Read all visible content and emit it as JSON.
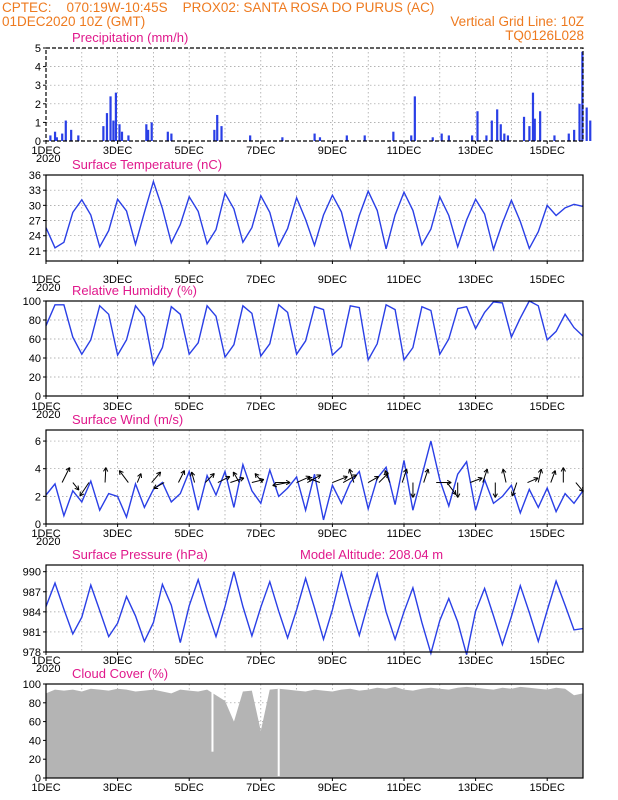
{
  "header": {
    "line1_left": "CPTEC:    070:19W-10:45S    PROX02: SANTA ROSA DO PURUS (AC)",
    "line2_left": "01DEC2020 10Z (GMT)",
    "line2_right": "Vertical Grid Line: 10Z",
    "line3_right": "TQ0126L028"
  },
  "colors": {
    "header": "#ee7a1f",
    "title": "#e0198c",
    "series": "#2a3fe6",
    "cloud": "#b4b4b4",
    "grid": "#9a9a9a"
  },
  "x_axis": {
    "start": "01DEC2020 10Z",
    "end": "16DEC2020 10Z",
    "tick_labels": [
      "1DEC",
      "3DEC",
      "5DEC",
      "7DEC",
      "9DEC",
      "11DEC",
      "13DEC",
      "15DEC"
    ],
    "first_tick_sublabel": "2020"
  },
  "chart_data": [
    {
      "type": "bar",
      "title": "Precipitation (mm/h)",
      "ylim": [
        0,
        5
      ],
      "yticks": [
        0,
        1,
        2,
        3,
        4,
        5
      ],
      "grid": true,
      "x_days": [
        0.12,
        0.25,
        0.3,
        0.45,
        0.55,
        0.7,
        0.9,
        1.6,
        1.7,
        1.8,
        1.88,
        1.95,
        2.05,
        2.12,
        2.3,
        2.8,
        2.85,
        2.95,
        3.4,
        3.5,
        4.7,
        4.78,
        4.9,
        5.7,
        6.6,
        7.5,
        7.65,
        8.4,
        8.9,
        9.7,
        10.2,
        10.3,
        10.8,
        11.05,
        11.25,
        11.9,
        12.05,
        12.3,
        12.45,
        12.6,
        12.7,
        12.8,
        12.9,
        13.35,
        13.5,
        13.6,
        13.65,
        13.8,
        14.2,
        14.6,
        14.75,
        14.9,
        14.98,
        15.1,
        15.2
      ],
      "values": [
        0.3,
        0.5,
        0.2,
        0.4,
        1.1,
        0.6,
        0.3,
        0.8,
        1.5,
        2.4,
        1.1,
        2.6,
        0.9,
        0.5,
        0.3,
        0.9,
        0.6,
        1.0,
        0.5,
        0.4,
        0.6,
        1.4,
        0.8,
        0.3,
        0.2,
        0.4,
        0.2,
        0.3,
        0.3,
        0.5,
        0.3,
        2.4,
        0.2,
        0.4,
        0.3,
        0.3,
        1.6,
        0.3,
        1.1,
        1.7,
        0.9,
        0.4,
        0.3,
        1.3,
        0.8,
        2.6,
        1.2,
        1.6,
        0.3,
        0.4,
        0.6,
        2.0,
        4.8,
        1.8,
        1.1
      ],
      "x_start": "01DEC2020 10Z",
      "x_span_days": 15
    },
    {
      "type": "line",
      "title": "Surface Temperature (nC)",
      "ylim": [
        19,
        36
      ],
      "yticks": [
        21,
        24,
        27,
        30,
        33,
        36
      ],
      "grid": true,
      "values": [
        25.6,
        21.6,
        22.7,
        28.6,
        31.1,
        28.1,
        21.8,
        25.0,
        31.2,
        28.9,
        22.3,
        28.6,
        34.7,
        29.4,
        22.6,
        26.2,
        31.7,
        28.8,
        22.4,
        25.2,
        32.4,
        29.3,
        22.7,
        25.6,
        31.9,
        28.6,
        22.0,
        25.4,
        31.5,
        27.2,
        22.1,
        28.1,
        32.0,
        28.7,
        21.6,
        28.0,
        32.8,
        29.0,
        21.4,
        28.1,
        32.6,
        29.0,
        22.2,
        25.3,
        31.7,
        28.0,
        21.8,
        27.1,
        31.2,
        28.3,
        21.3,
        26.5,
        31.0,
        26.8,
        21.5,
        24.8,
        30.0,
        28.0,
        29.5,
        30.2,
        29.8
      ],
      "x_start": "01DEC2020 10Z",
      "x_span_days": 15
    },
    {
      "type": "line",
      "title": "Relative Humidity (%)",
      "ylim": [
        0,
        100
      ],
      "yticks": [
        0,
        20,
        40,
        60,
        80,
        100
      ],
      "grid": true,
      "values": [
        74,
        96,
        96,
        62,
        44,
        59,
        95,
        86,
        43,
        59,
        95,
        83,
        33,
        51,
        94,
        86,
        44,
        56,
        95,
        84,
        41,
        54,
        95,
        87,
        42,
        55,
        96,
        88,
        44,
        58,
        94,
        91,
        43,
        52,
        95,
        93,
        38,
        55,
        96,
        91,
        38,
        51,
        94,
        90,
        44,
        60,
        92,
        94,
        71,
        88,
        99,
        98,
        62,
        82,
        100,
        95,
        59,
        68,
        86,
        72,
        63
      ],
      "x_start": "01DEC2020 10Z",
      "x_span_days": 15
    },
    {
      "type": "line",
      "title": "Surface Wind (m/s)",
      "ylim": [
        0,
        6.8
      ],
      "yticks": [
        0,
        2,
        4,
        6
      ],
      "grid": true,
      "values": [
        2.1,
        2.9,
        0.6,
        2.4,
        1.6,
        3.1,
        1.0,
        2.2,
        2.0,
        0.5,
        2.9,
        1.2,
        2.5,
        3.0,
        1.6,
        2.2,
        3.8,
        1.0,
        3.5,
        2.1,
        3.8,
        1.2,
        4.3,
        2.4,
        1.5,
        3.9,
        2.0,
        2.6,
        3.4,
        1.0,
        3.6,
        0.3,
        2.8,
        1.5,
        3.0,
        3.8,
        1.1,
        3.3,
        4.1,
        1.4,
        4.6,
        1.0,
        3.5,
        6.0,
        3.2,
        1.3,
        3.6,
        4.5,
        1.0,
        3.2,
        1.5,
        2.0,
        2.8,
        0.8,
        2.5,
        1.2,
        2.6,
        0.9,
        2.2,
        1.5,
        2.4
      ],
      "arrows": [
        [
          0.45,
          0.5,
          1.0
        ],
        [
          0.75,
          0.4,
          -0.5
        ],
        [
          1.2,
          -0.6,
          -0.9
        ],
        [
          1.65,
          0.05,
          1.0
        ],
        [
          2.3,
          -0.6,
          0.8
        ],
        [
          2.55,
          0.25,
          0.6
        ],
        [
          2.95,
          0.6,
          0.7
        ],
        [
          3.3,
          -0.7,
          -0.4
        ],
        [
          3.7,
          0.4,
          0.8
        ],
        [
          4.15,
          -0.2,
          0.7
        ],
        [
          4.45,
          0.6,
          0.6
        ],
        [
          4.8,
          0.8,
          0.4
        ],
        [
          5.15,
          0.9,
          0.3
        ],
        [
          5.4,
          -0.4,
          0.7
        ],
        [
          5.75,
          0.8,
          0.2
        ],
        [
          6.05,
          -0.5,
          0.6
        ],
        [
          6.4,
          1.0,
          0.0
        ],
        [
          6.75,
          -1.0,
          -0.2
        ],
        [
          7.0,
          0.9,
          0.4
        ],
        [
          7.3,
          0.9,
          0.5
        ],
        [
          7.65,
          -0.8,
          0.3
        ],
        [
          8.0,
          1.0,
          0.4
        ],
        [
          8.3,
          0.9,
          0.5
        ],
        [
          8.6,
          -0.3,
          0.9
        ],
        [
          9.0,
          0.7,
          0.4
        ],
        [
          9.3,
          0.6,
          0.6
        ],
        [
          9.6,
          -0.3,
          0.8
        ],
        [
          9.95,
          0.3,
          0.9
        ],
        [
          10.25,
          0.0,
          -1.0
        ],
        [
          10.55,
          0.3,
          0.9
        ],
        [
          10.9,
          1.0,
          0.0
        ],
        [
          11.2,
          0.6,
          -0.8
        ],
        [
          11.5,
          0.0,
          -1.0
        ],
        [
          11.85,
          0.8,
          0.3
        ],
        [
          12.2,
          0.3,
          0.9
        ],
        [
          12.55,
          0.0,
          -1.0
        ],
        [
          12.85,
          -0.2,
          0.9
        ],
        [
          13.15,
          -0.3,
          -0.9
        ],
        [
          13.45,
          0.7,
          0.3
        ],
        [
          13.75,
          0.2,
          0.9
        ],
        [
          14.1,
          0.3,
          0.8
        ],
        [
          14.45,
          0.0,
          1.0
        ],
        [
          14.8,
          0.5,
          -0.6
        ]
      ],
      "x_start": "01DEC2020 10Z",
      "x_span_days": 15
    },
    {
      "type": "line",
      "title": "Surface Pressure (hPa)",
      "annotation": "Model Altitude: 208.04  m",
      "ylim": [
        978,
        991
      ],
      "yticks": [
        978,
        981,
        984,
        987,
        990
      ],
      "grid": true,
      "values": [
        984.8,
        988.3,
        984.4,
        980.7,
        983.2,
        988.0,
        984.2,
        980.3,
        982.3,
        986.3,
        983.4,
        979.6,
        982.4,
        988.1,
        985.0,
        979.4,
        984.9,
        988.8,
        984.3,
        980.3,
        984.8,
        990.0,
        984.8,
        980.4,
        984.7,
        988.5,
        984.1,
        980.1,
        984.3,
        989.0,
        984.6,
        979.9,
        984.3,
        989.8,
        985.0,
        980.5,
        985.3,
        989.7,
        984.0,
        979.9,
        984.0,
        987.6,
        982.4,
        977.8,
        982.7,
        986.0,
        982.5,
        977.6,
        984.1,
        987.5,
        983.4,
        979.1,
        983.3,
        987.9,
        983.9,
        979.6,
        984.2,
        988.6,
        985.0,
        981.3,
        981.5
      ],
      "x_start": "01DEC2020 10Z",
      "x_span_days": 15
    },
    {
      "type": "area",
      "title": "Cloud Cover (%)",
      "ylim": [
        0,
        100
      ],
      "yticks": [
        0,
        20,
        40,
        60,
        80,
        100
      ],
      "grid": true,
      "values": [
        90,
        94,
        93,
        94,
        92,
        95,
        94,
        93,
        95,
        94,
        92,
        93,
        94,
        92,
        90,
        94,
        93,
        92,
        94,
        88,
        82,
        60,
        92,
        93,
        50,
        94,
        95,
        94,
        93,
        92,
        94,
        93,
        92,
        94,
        95,
        93,
        94,
        96,
        95,
        97,
        94,
        93,
        95,
        96,
        95,
        94,
        96,
        97,
        96,
        95,
        94,
        96,
        95,
        97,
        96,
        95,
        94,
        96,
        95,
        88,
        90
      ],
      "dips": [
        [
          4.65,
          28
        ],
        [
          6.5,
          2
        ]
      ],
      "x_start": "01DEC2020 10Z",
      "x_span_days": 15
    }
  ]
}
